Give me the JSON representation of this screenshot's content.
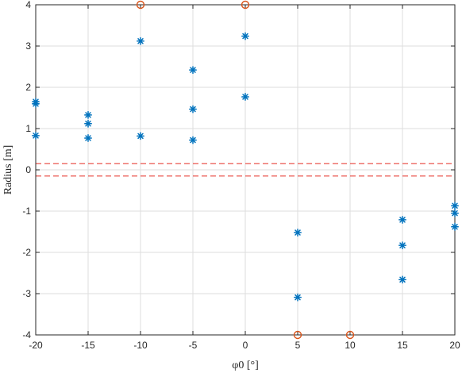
{
  "chart_data": {
    "type": "scatter",
    "xlabel": "φ0 [°]",
    "ylabel": "Radius [m]",
    "xlim": [
      -20,
      20
    ],
    "ylim": [
      -4,
      4
    ],
    "xticks": [
      "-20",
      "-15",
      "-10",
      "-5",
      "0",
      "5",
      "10",
      "15",
      "20"
    ],
    "yticks": [
      "4",
      "3",
      "2",
      "1",
      "0",
      "-1",
      "-2",
      "-3",
      "-4"
    ],
    "grid": true,
    "colors": {
      "star": "#0072BD",
      "circle": "#D95319",
      "dashed": "#E8413A"
    },
    "series": [
      {
        "marker": "star",
        "x": [
          -20,
          -20,
          -20,
          -15,
          -15,
          -15,
          -10,
          -10,
          -5,
          -5,
          -5,
          0,
          0,
          5,
          5,
          15,
          15,
          15,
          20,
          20,
          20
        ],
        "y": [
          1.65,
          1.6,
          0.83,
          1.33,
          1.12,
          0.77,
          3.12,
          0.82,
          2.42,
          1.47,
          0.72,
          3.24,
          1.77,
          -1.52,
          -3.09,
          -1.21,
          -1.83,
          -2.66,
          -0.87,
          -1.05,
          -1.38
        ]
      },
      {
        "marker": "circle",
        "x": [
          -10,
          0,
          5,
          10
        ],
        "y": [
          4,
          4,
          -4,
          -4
        ]
      }
    ],
    "reference_lines": [
      0.15,
      -0.15
    ]
  }
}
